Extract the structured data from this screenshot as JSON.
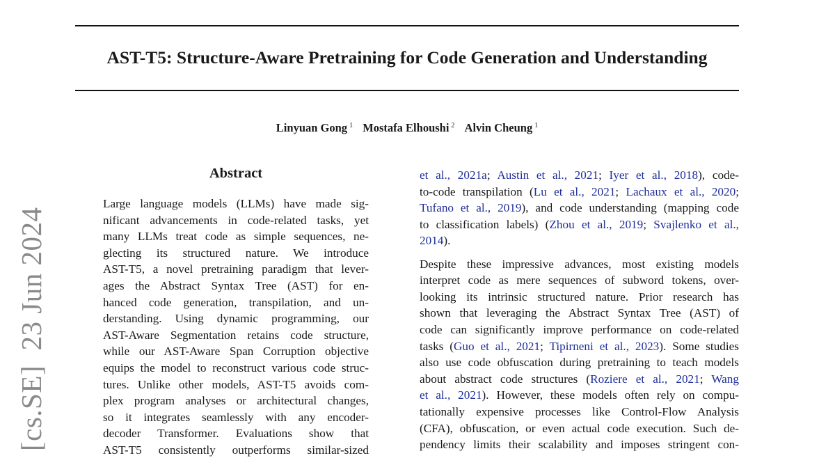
{
  "arxiv_stamp": "[cs.SE]  23 Jun 2024",
  "title": "AST-T5: Structure-Aware Pretraining for Code Generation and Understanding",
  "authors": [
    {
      "name": "Linyuan Gong",
      "affil": "1"
    },
    {
      "name": "Mostafa Elhoushi",
      "affil": "2"
    },
    {
      "name": "Alvin Cheung",
      "affil": "1"
    }
  ],
  "abstract_heading": "Abstract",
  "left_lines": [
    [
      {
        "t": "Large language models (LLMs) have made sig-"
      }
    ],
    [
      {
        "t": "nificant advancements in code-related tasks, yet"
      }
    ],
    [
      {
        "t": "many LLMs treat code as simple sequences, ne-"
      }
    ],
    [
      {
        "t": "glecting its structured nature.  We introduce"
      }
    ],
    [
      {
        "t": "AST-T5, a novel pretraining paradigm that lever-"
      }
    ],
    [
      {
        "t": "ages the Abstract Syntax Tree (AST) for en-"
      }
    ],
    [
      {
        "t": "hanced code generation, transpilation, and un-"
      }
    ],
    [
      {
        "t": "derstanding. Using dynamic programming, our"
      }
    ],
    [
      {
        "t": "AST-Aware Segmentation retains code structure,"
      }
    ],
    [
      {
        "t": "while our AST-Aware Span Corruption objective"
      }
    ],
    [
      {
        "t": "equips the model to reconstruct various code struc-"
      }
    ],
    [
      {
        "t": "tures. Unlike other models, AST-T5 avoids com-"
      }
    ],
    [
      {
        "t": "plex program analyses or architectural changes,"
      }
    ],
    [
      {
        "t": "so it integrates seamlessly with any encoder-"
      }
    ],
    [
      {
        "t": "decoder Transformer.  Evaluations show that"
      }
    ],
    [
      {
        "t": "AST-T5 consistently outperforms similar-sized"
      }
    ]
  ],
  "right_paragraphs": [
    [
      [
        {
          "t": "et al., 2021a",
          "link": true
        },
        {
          "t": "; "
        },
        {
          "t": "Austin et al., 2021",
          "link": true
        },
        {
          "t": "; "
        },
        {
          "t": "Iyer et al., 2018",
          "link": true
        },
        {
          "t": "), code-"
        }
      ],
      [
        {
          "t": "to-code transpilation ("
        },
        {
          "t": "Lu et al., 2021",
          "link": true
        },
        {
          "t": "; "
        },
        {
          "t": "Lachaux et al., 2020",
          "link": true
        },
        {
          "t": ";"
        }
      ],
      [
        {
          "t": "Tufano et al., 2019",
          "link": true
        },
        {
          "t": "), and code understanding (mapping code"
        }
      ],
      [
        {
          "t": "to classification labels) ("
        },
        {
          "t": "Zhou et al., 2019",
          "link": true
        },
        {
          "t": "; "
        },
        {
          "t": "Svajlenko et al.,",
          "link": true
        }
      ],
      [
        {
          "t": "2014",
          "link": true
        },
        {
          "t": ")."
        }
      ]
    ],
    [
      [
        {
          "t": "Despite these impressive advances, most existing models"
        }
      ],
      [
        {
          "t": "interpret code as mere sequences of subword tokens, over-"
        }
      ],
      [
        {
          "t": "looking its intrinsic structured nature.  Prior research has"
        }
      ],
      [
        {
          "t": "shown that leveraging the Abstract Syntax Tree (AST) of"
        }
      ],
      [
        {
          "t": "code can significantly improve performance on code-related"
        }
      ],
      [
        {
          "t": "tasks ("
        },
        {
          "t": "Guo et al., 2021",
          "link": true
        },
        {
          "t": "; "
        },
        {
          "t": "Tipirneni et al., 2023",
          "link": true
        },
        {
          "t": "). Some studies"
        }
      ],
      [
        {
          "t": "also use code obfuscation during pretraining to teach models"
        }
      ],
      [
        {
          "t": "about abstract code structures ("
        },
        {
          "t": "Roziere et al., 2021",
          "link": true
        },
        {
          "t": "; "
        },
        {
          "t": "Wang",
          "link": true
        }
      ],
      [
        {
          "t": "et al., 2021",
          "link": true
        },
        {
          "t": "). However, these models often rely on compu-"
        }
      ],
      [
        {
          "t": "tationally expensive processes like Control-Flow Analysis"
        }
      ],
      [
        {
          "t": "(CFA), obfuscation, or even actual code execution. Such de-"
        }
      ],
      [
        {
          "t": "pendency limits their scalability and imposes stringent con-"
        }
      ]
    ]
  ],
  "colors": {
    "text": "#1a1a1a",
    "citation_link": "#1f2f9a",
    "stamp": "#8a8a8a"
  }
}
